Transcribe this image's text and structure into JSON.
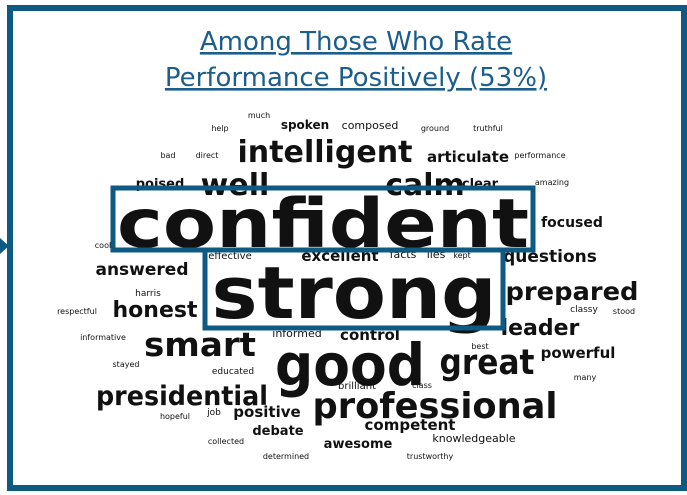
{
  "header": {
    "title_lines": [
      "Among Those Who Rate",
      "Performance Positively (53%)"
    ]
  },
  "words": [
    "much",
    "help",
    "spoken",
    "composed",
    "ground",
    "truthful",
    "bad",
    "direct",
    "intelligent",
    "articulate",
    "performance",
    "poised",
    "well",
    "calm",
    "clear",
    "amazing",
    "confident",
    "focused",
    "cool",
    "effective",
    "excellent",
    "facts",
    "lies",
    "kept",
    "questions",
    "answered",
    "strong",
    "prepared",
    "harris",
    "honest",
    "classy",
    "respectful",
    "stood",
    "informed",
    "control",
    "leader",
    "smart",
    "informative",
    "good",
    "great",
    "best",
    "powerful",
    "stayed",
    "educated",
    "many",
    "brilliant",
    "class",
    "presidential",
    "professional",
    "hopeful",
    "job",
    "positive",
    "competent",
    "debate",
    "knowledgeable",
    "collected",
    "awesome",
    "determined",
    "trustworthy"
  ]
}
